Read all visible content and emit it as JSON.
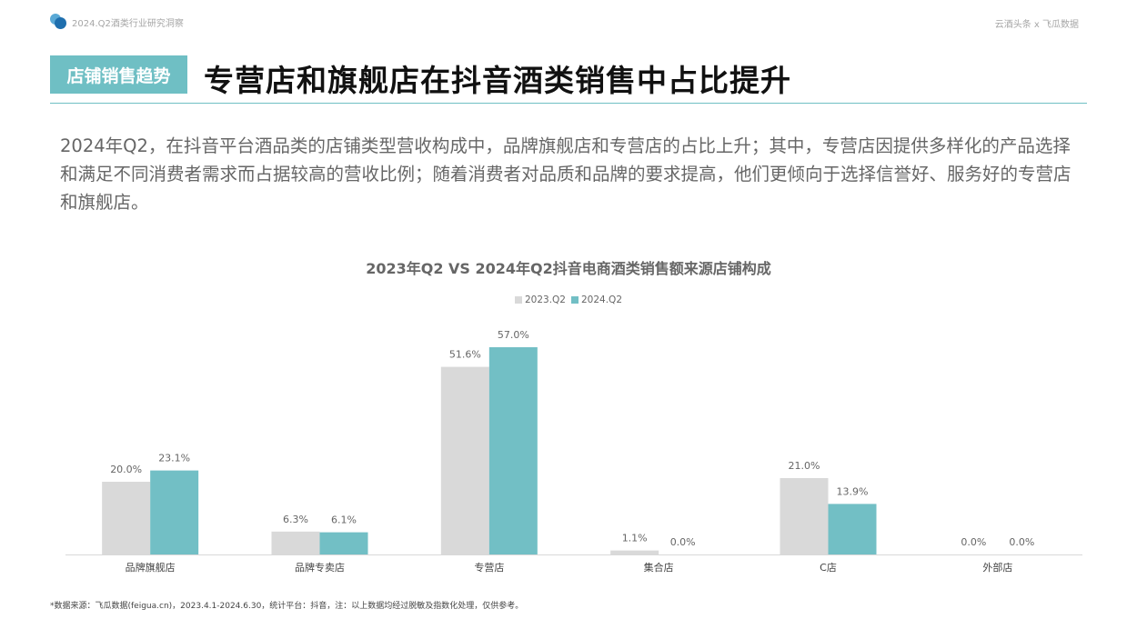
{
  "header": {
    "subtitle": "2024.Q2酒类行业研究洞察",
    "source_brand": "云酒头条 x 飞瓜数据"
  },
  "section_tag": "店铺销售趋势",
  "headline": "专营店和旗舰店在抖音酒类销售中占比提升",
  "summary": "2024年Q2，在抖音平台酒品类的店铺类型营收构成中，品牌旗舰店和专营店的占比上升；其中，专营店因提供多样化的产品选择和满足不同消费者需求而占据较高的营收比例；随着消费者对品质和品牌的要求提高，他们更倾向于选择信誉好、服务好的专营店和旗舰店。",
  "footnote": "*数据来源：飞瓜数据(feigua.cn)，2023.4.1-2024.6.30，统计平台：抖音，注：以上数据均经过脱敏及指数化处理，仅供参考。",
  "colors": {
    "accent": "#6fbfc4",
    "series_2023": "#d9d9d9",
    "series_2024": "#72bfc5"
  },
  "chart_data": {
    "type": "bar",
    "title": "2023年Q2 VS 2024年Q2抖音电商酒类销售额来源店铺构成",
    "categories": [
      "品牌旗舰店",
      "品牌专卖店",
      "专营店",
      "集合店",
      "C店",
      "外部店"
    ],
    "series": [
      {
        "name": "2023.Q2",
        "color": "#d9d9d9",
        "values": [
          20.0,
          6.3,
          51.6,
          1.1,
          21.0,
          0.0
        ],
        "labels": [
          "20.0%",
          "6.3%",
          "51.6%",
          "1.1%",
          "21.0%",
          "0.0%"
        ]
      },
      {
        "name": "2024.Q2",
        "color": "#72bfc5",
        "values": [
          23.1,
          6.1,
          57.0,
          0.0,
          13.9,
          0.0
        ],
        "labels": [
          "23.1%",
          "6.1%",
          "57.0%",
          "0.0%",
          "13.9%",
          "0.0%"
        ]
      }
    ],
    "value_unit": "%",
    "ylim": [
      0,
      60
    ],
    "legend_position": "top-center",
    "grid": false
  }
}
